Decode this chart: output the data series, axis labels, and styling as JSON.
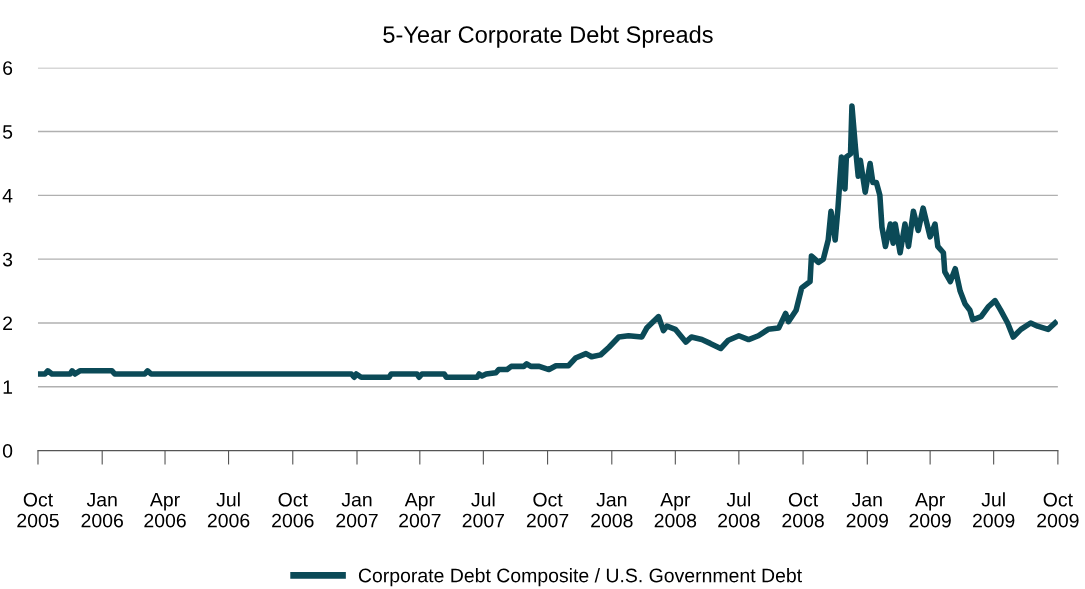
{
  "chart_data": {
    "type": "line",
    "title": "5-Year Corporate Debt Spreads",
    "x": [
      "2005-10-01",
      "2005-10-11",
      "2005-10-15",
      "2005-10-21",
      "2005-11-16",
      "2005-11-19",
      "2005-11-23",
      "2005-11-30",
      "2006-01-15",
      "2006-01-19",
      "2006-03-03",
      "2006-03-07",
      "2006-03-12",
      "2006-12-24",
      "2006-12-28",
      "2006-12-31",
      "2007-01-07",
      "2007-02-16",
      "2007-02-19",
      "2007-03-28",
      "2007-03-31",
      "2007-04-04",
      "2007-05-06",
      "2007-05-09",
      "2007-06-22",
      "2007-06-25",
      "2007-06-29",
      "2007-07-05",
      "2007-07-19",
      "2007-07-23",
      "2007-08-04",
      "2007-08-10",
      "2007-08-28",
      "2007-09-01",
      "2007-09-07",
      "2007-09-19",
      "2007-10-03",
      "2007-10-13",
      "2007-10-31",
      "2007-11-10",
      "2007-11-25",
      "2007-12-03",
      "2007-12-16",
      "2007-12-28",
      "2008-01-11",
      "2008-01-25",
      "2008-02-13",
      "2008-02-20",
      "2008-03-08",
      "2008-03-15",
      "2008-03-20",
      "2008-04-01",
      "2008-04-16",
      "2008-04-24",
      "2008-05-09",
      "2008-05-21",
      "2008-06-05",
      "2008-06-16",
      "2008-07-01",
      "2008-07-15",
      "2008-07-29",
      "2008-08-12",
      "2008-08-27",
      "2008-09-06",
      "2008-09-10",
      "2008-09-21",
      "2008-09-29",
      "2008-10-11",
      "2008-10-13",
      "2008-10-23",
      "2008-10-30",
      "2008-11-06",
      "2008-11-10",
      "2008-11-16",
      "2008-11-20",
      "2008-11-25",
      "2008-11-30",
      "2008-12-02",
      "2008-12-08",
      "2008-12-10",
      "2008-12-15",
      "2008-12-19",
      "2008-12-22",
      "2008-12-29",
      "2009-01-05",
      "2009-01-09",
      "2009-01-14",
      "2009-01-19",
      "2009-01-22",
      "2009-01-27",
      "2009-02-03",
      "2009-02-07",
      "2009-02-10",
      "2009-02-17",
      "2009-02-24",
      "2009-03-01",
      "2009-03-08",
      "2009-03-15",
      "2009-03-22",
      "2009-04-01",
      "2009-04-08",
      "2009-04-12",
      "2009-04-20",
      "2009-04-22",
      "2009-04-30",
      "2009-05-07",
      "2009-05-14",
      "2009-05-21",
      "2009-05-28",
      "2009-06-01",
      "2009-06-13",
      "2009-06-23",
      "2009-07-03",
      "2009-07-11",
      "2009-07-21",
      "2009-07-29",
      "2009-08-09",
      "2009-08-23",
      "2009-09-02",
      "2009-09-17",
      "2009-09-27"
    ],
    "series": [
      {
        "name": "Corporate Debt Composite / U.S. Government Debt",
        "color": "#0b4a57",
        "values": [
          1.2,
          1.2,
          1.25,
          1.2,
          1.2,
          1.25,
          1.2,
          1.25,
          1.25,
          1.2,
          1.2,
          1.25,
          1.2,
          1.2,
          1.15,
          1.2,
          1.15,
          1.15,
          1.2,
          1.2,
          1.15,
          1.2,
          1.2,
          1.15,
          1.15,
          1.2,
          1.17,
          1.2,
          1.22,
          1.27,
          1.27,
          1.32,
          1.32,
          1.36,
          1.32,
          1.32,
          1.27,
          1.33,
          1.33,
          1.45,
          1.52,
          1.47,
          1.5,
          1.62,
          1.78,
          1.8,
          1.78,
          1.92,
          2.1,
          1.88,
          1.95,
          1.9,
          1.7,
          1.78,
          1.74,
          1.68,
          1.6,
          1.73,
          1.8,
          1.74,
          1.8,
          1.9,
          1.92,
          2.15,
          2.02,
          2.2,
          2.55,
          2.65,
          3.05,
          2.95,
          3.0,
          3.3,
          3.75,
          3.3,
          3.8,
          4.6,
          4.1,
          4.6,
          4.65,
          5.4,
          4.75,
          4.3,
          4.55,
          4.05,
          4.5,
          4.2,
          4.2,
          4.0,
          3.5,
          3.2,
          3.55,
          3.25,
          3.55,
          3.1,
          3.55,
          3.2,
          3.75,
          3.45,
          3.8,
          3.35,
          3.55,
          3.2,
          3.1,
          2.8,
          2.65,
          2.85,
          2.5,
          2.3,
          2.2,
          2.05,
          2.1,
          2.25,
          2.35,
          2.2,
          2.0,
          1.78,
          1.9,
          2.0,
          1.95,
          1.9,
          2.0
        ]
      }
    ],
    "xlim": [
      "2005-10-01",
      "2009-10-01"
    ],
    "xticks": [
      {
        "value": "2005-10-01",
        "label": "Oct\n2005"
      },
      {
        "value": "2006-01-01",
        "label": "Jan\n2006"
      },
      {
        "value": "2006-04-01",
        "label": "Apr\n2006"
      },
      {
        "value": "2006-07-01",
        "label": "Jul\n2006"
      },
      {
        "value": "2006-10-01",
        "label": "Oct\n2006"
      },
      {
        "value": "2007-01-01",
        "label": "Jan\n2007"
      },
      {
        "value": "2007-04-01",
        "label": "Apr\n2007"
      },
      {
        "value": "2007-07-01",
        "label": "Jul\n2007"
      },
      {
        "value": "2007-10-01",
        "label": "Oct\n2007"
      },
      {
        "value": "2008-01-01",
        "label": "Jan\n2008"
      },
      {
        "value": "2008-04-01",
        "label": "Apr\n2008"
      },
      {
        "value": "2008-07-01",
        "label": "Jul\n2008"
      },
      {
        "value": "2008-10-01",
        "label": "Oct\n2008"
      },
      {
        "value": "2009-01-01",
        "label": "Jan\n2009"
      },
      {
        "value": "2009-04-01",
        "label": "Apr\n2009"
      },
      {
        "value": "2009-07-01",
        "label": "Jul\n2009"
      },
      {
        "value": "2009-10-01",
        "label": "Oct\n2009"
      }
    ],
    "ylim": [
      0,
      6
    ],
    "yticks": [
      0,
      1,
      2,
      3,
      4,
      5,
      6
    ],
    "grid": "y",
    "legend": "bottom",
    "marker": "none",
    "line_style": "solid"
  }
}
